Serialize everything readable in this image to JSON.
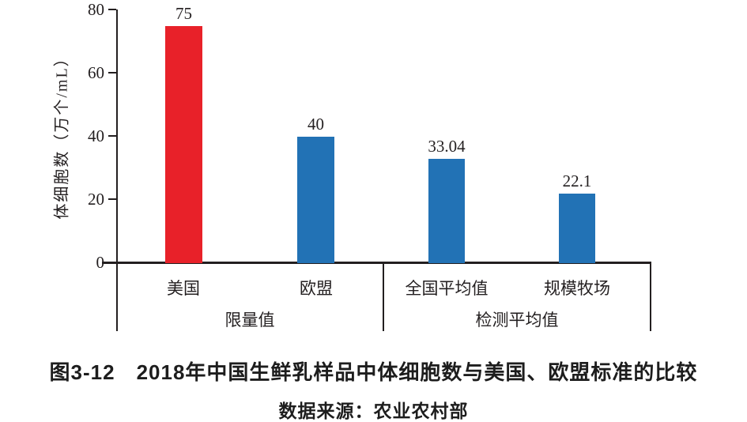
{
  "figure": {
    "caption_line1": "图3-12　2018年中国生鲜乳样品中体细胞数与美国、欧盟标准的比较",
    "caption_line2": "数据来源：农业农村部"
  },
  "chart_data": {
    "type": "bar",
    "title": "",
    "xlabel": "",
    "ylabel": "体细胞数（万个/mL）",
    "ylim": [
      0,
      80
    ],
    "yticks": [
      0,
      20,
      40,
      60,
      80
    ],
    "categories": [
      "美国",
      "欧盟",
      "全国平均值",
      "规模牧场"
    ],
    "values": [
      75,
      40,
      33.04,
      22.1
    ],
    "value_labels": [
      "75",
      "40",
      "33.04",
      "22.1"
    ],
    "bar_colors": [
      "#e82129",
      "#2272b5",
      "#2272b5",
      "#2272b5"
    ],
    "groups": [
      {
        "label": "限量值",
        "categories": [
          "美国",
          "欧盟"
        ]
      },
      {
        "label": "检测平均值",
        "categories": [
          "全国平均值",
          "规模牧场"
        ]
      }
    ],
    "grid": false,
    "legend": "none",
    "colors": {
      "limit_us": "#e82129",
      "standard_blue": "#2272b5",
      "axis": "#231f20"
    }
  }
}
